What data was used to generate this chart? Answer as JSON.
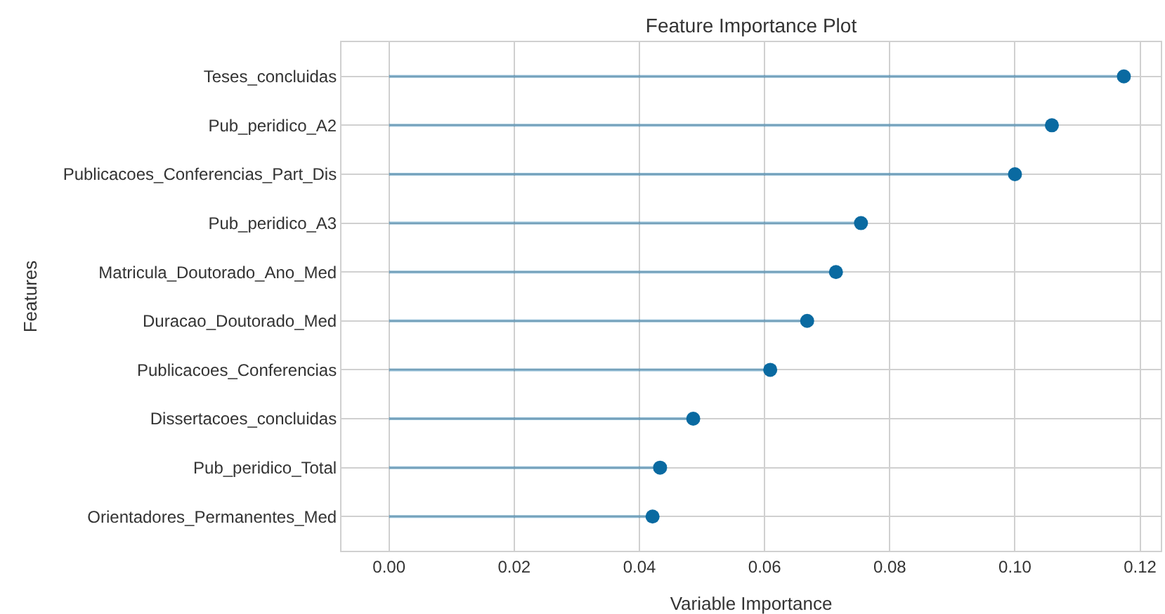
{
  "chart_data": {
    "type": "lollipop",
    "orientation": "horizontal",
    "title": "Feature Importance Plot",
    "xlabel": "Variable Importance",
    "ylabel": "Features",
    "categories": [
      "Teses_concluidas",
      "Pub_peridico_A2",
      "Publicacoes_Conferencias_Part_Dis",
      "Pub_peridico_A3",
      "Matricula_Doutorado_Ano_Med",
      "Duracao_Doutorado_Med",
      "Publicacoes_Conferencias",
      "Dissertacoes_concluidas",
      "Pub_peridico_Total",
      "Orientadores_Permanentes_Med"
    ],
    "series": [
      {
        "color": "#0a6aa1",
        "values": [
          0.1174,
          0.1059,
          0.1,
          0.0754,
          0.0714,
          0.0668,
          0.0609,
          0.0486,
          0.0433,
          0.0421
        ]
      }
    ],
    "xlim": [
      -0.0076,
      0.1233
    ],
    "xticks": [
      {
        "value": 0,
        "label": "0.00"
      },
      {
        "value": 0.02,
        "label": "0.02"
      },
      {
        "value": 0.04,
        "label": "0.04"
      },
      {
        "value": 0.06,
        "label": "0.06"
      },
      {
        "value": 0.08,
        "label": "0.08"
      },
      {
        "value": 0.1,
        "label": "0.10"
      },
      {
        "value": 0.12,
        "label": "0.12"
      }
    ],
    "grid": true,
    "marker": "circle"
  }
}
